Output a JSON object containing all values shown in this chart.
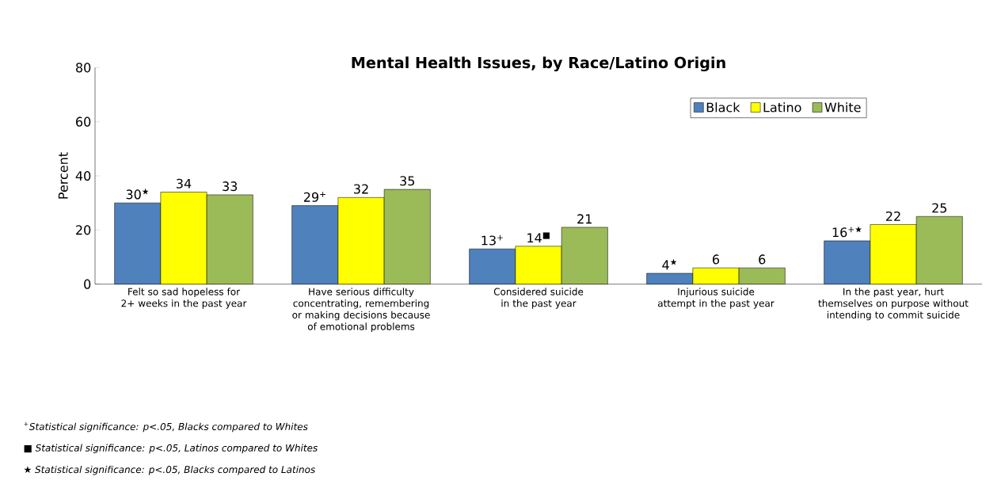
{
  "chart_data": {
    "type": "bar",
    "title": "Mental Health Issues, by Race/Latino Origin",
    "ylabel": "Percent",
    "categories": [
      "Felt so sad hopeless for 2+ weeks in the past year",
      "Have serious difficulty concentrating, remembering or making decisions because of emotional problems",
      "Considered suicide in the past year",
      "Injurious suicide attempt in the past year",
      "In the past year, hurt themselves on purpose without intending to commit suicide"
    ],
    "series": [
      {
        "name": "Black",
        "color": "#4f81bd",
        "values": [
          30,
          29,
          13,
          4,
          16
        ],
        "value_labels": [
          "30$^{★}$",
          "29$^{+}$",
          "13$^{+}$",
          "4$^{★}$",
          "16$^{+★}$"
        ]
      },
      {
        "name": "Latino",
        "color": "#ffff00",
        "values": [
          34,
          32,
          14,
          6,
          22
        ],
        "value_labels": [
          "34",
          "32",
          "14$^{■}$",
          "6",
          "22"
        ]
      },
      {
        "name": "White",
        "color": "#9bbb59",
        "values": [
          33,
          35,
          21,
          6,
          25
        ],
        "value_labels": [
          "33",
          "35",
          "21",
          "6",
          "25"
        ]
      }
    ],
    "ylim": [
      0,
      80
    ],
    "yticks": [
      0,
      20,
      40,
      60,
      80
    ],
    "grid": false,
    "legend": "top right",
    "annotations": [
      "$^{+}$*Statistical significance: p<.05, Blacks compared to Whites*",
      "■ *Statistical significance: p<.05, Latinos compared to Whites*",
      "★ *Statistical significance: p<.05, Blacks compared to Latinos*"
    ]
  }
}
